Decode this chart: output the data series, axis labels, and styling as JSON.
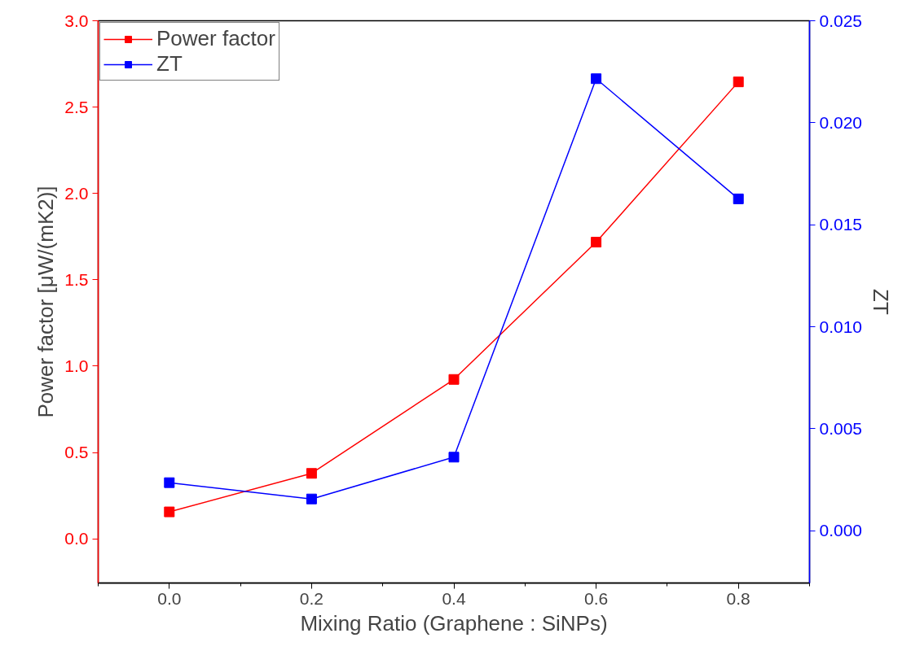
{
  "chart_data": {
    "type": "line",
    "xlabel": "Mixing Ratio (Graphene : SiNPs)",
    "ylabel": "Power factor [μW/(mK2)]",
    "y2label": "ZT",
    "x": [
      0.0,
      0.2,
      0.4,
      0.6,
      0.8
    ],
    "series": [
      {
        "name": "Power factor",
        "color": "#ff0000",
        "values": [
          0.156,
          0.379,
          0.923,
          1.718,
          2.646
        ]
      },
      {
        "name": "ZT",
        "color": "#0000ff",
        "axis": "y2",
        "values": [
          0.00236,
          0.00156,
          0.00361,
          0.02216,
          0.01627
        ]
      }
    ],
    "xlim": [
      -0.1,
      0.9
    ],
    "xticks": [
      {
        "value": 0.0,
        "label": "0.0"
      },
      {
        "value": 0.2,
        "label": "0.2"
      },
      {
        "value": 0.4,
        "label": "0.4"
      },
      {
        "value": 0.6,
        "label": "0.6"
      },
      {
        "value": 0.8,
        "label": "0.8"
      }
    ],
    "ylim": [
      -0.256,
      3.0
    ],
    "yticks": [
      {
        "value": 0.0,
        "label": "0.0"
      },
      {
        "value": 0.5,
        "label": "0.5"
      },
      {
        "value": 1.0,
        "label": "1.0"
      },
      {
        "value": 1.5,
        "label": "1.5"
      },
      {
        "value": 2.0,
        "label": "2.0"
      },
      {
        "value": 2.5,
        "label": "2.5"
      },
      {
        "value": 3.0,
        "label": "3.0"
      }
    ],
    "y2lim": [
      -0.00256,
      0.025
    ],
    "y2ticks": [
      {
        "value": 0.0,
        "label": "0.000"
      },
      {
        "value": 0.005,
        "label": "0.005"
      },
      {
        "value": 0.01,
        "label": "0.010"
      },
      {
        "value": 0.015,
        "label": "0.015"
      },
      {
        "value": 0.02,
        "label": "0.020"
      },
      0.025
    ],
    "marker": "square",
    "line_style": "solid",
    "legend": "top left",
    "grid": false
  }
}
